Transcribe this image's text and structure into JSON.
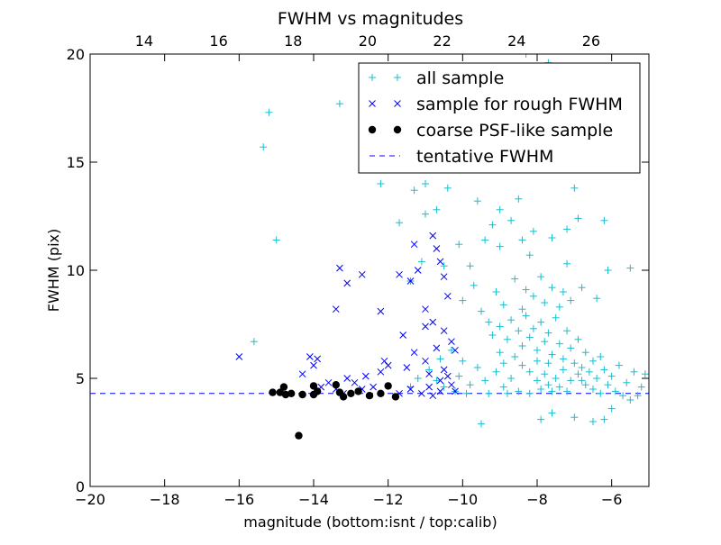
{
  "chart_data": {
    "type": "scatter",
    "title": "FWHM vs magnitudes",
    "xlabel": "magnitude (bottom:isnt / top:calib)",
    "ylabel": "FWHM (pix)",
    "xlim": [
      -20,
      -5
    ],
    "ylim": [
      0,
      20
    ],
    "top_xlim": [
      12.55,
      27.55
    ],
    "x_ticks": [
      -20,
      -18,
      -16,
      -14,
      -12,
      -10,
      -8,
      -6
    ],
    "x_tick_labels": [
      "−20",
      "−18",
      "−16",
      "−14",
      "−12",
      "−10",
      "−8",
      "−6"
    ],
    "top_x_ticks": [
      14,
      16,
      18,
      20,
      22,
      24,
      26
    ],
    "top_x_tick_labels": [
      "14",
      "16",
      "18",
      "20",
      "22",
      "24",
      "26"
    ],
    "y_ticks": [
      0,
      5,
      10,
      15,
      20
    ],
    "y_tick_labels": [
      "0",
      "5",
      "10",
      "15",
      "20"
    ],
    "grid": false,
    "legend_position": "top-right",
    "legend": [
      {
        "label": "all sample",
        "marker": "plus",
        "color": "#17becf"
      },
      {
        "label": "sample for rough FWHM",
        "marker": "x",
        "color": "#0000ff"
      },
      {
        "label": "coarse PSF-like sample",
        "marker": "dot",
        "color": "#000000"
      },
      {
        "label": "tentative FWHM",
        "marker": "dashed-line",
        "color": "#0000ff"
      }
    ],
    "tentative_fwhm": 4.3,
    "series": [
      {
        "name": "all sample",
        "marker": "plus",
        "color": "#17becf",
        "points": [
          [
            -15.2,
            17.3
          ],
          [
            -15.35,
            15.7
          ],
          [
            -15.0,
            11.4
          ],
          [
            -15.6,
            6.7
          ],
          [
            -13.3,
            17.7
          ],
          [
            -12.2,
            14.0
          ],
          [
            -11.6,
            20.2
          ],
          [
            -11.8,
            18.2
          ],
          [
            -10.3,
            18.3
          ],
          [
            -8.3,
            20.0
          ],
          [
            -7.7,
            19.6
          ],
          [
            -7.4,
            18.1
          ],
          [
            -8.4,
            18.4
          ],
          [
            -9.8,
            17.6
          ],
          [
            -10.4,
            13.8
          ],
          [
            -11.0,
            14.0
          ],
          [
            -11.3,
            13.7
          ],
          [
            -9.6,
            13.2
          ],
          [
            -9.0,
            12.8
          ],
          [
            -8.5,
            13.3
          ],
          [
            -7.0,
            13.8
          ],
          [
            -6.2,
            12.3
          ],
          [
            -6.9,
            12.4
          ],
          [
            -11.7,
            12.2
          ],
          [
            -11.0,
            12.6
          ],
          [
            -10.7,
            12.8
          ],
          [
            -9.8,
            10.2
          ],
          [
            -8.2,
            10.7
          ],
          [
            -7.2,
            10.3
          ],
          [
            -6.1,
            10.0
          ],
          [
            -5.5,
            10.1
          ],
          [
            -6.8,
            9.2
          ],
          [
            -6.4,
            8.7
          ],
          [
            -11.4,
            9.5
          ],
          [
            -11.1,
            10.4
          ],
          [
            -10.5,
            10.2
          ],
          [
            -10.1,
            11.2
          ],
          [
            -9.4,
            11.4
          ],
          [
            -9.2,
            12.1
          ],
          [
            -8.7,
            12.3
          ],
          [
            -9.0,
            11.1
          ],
          [
            -8.4,
            11.4
          ],
          [
            -8.1,
            11.8
          ],
          [
            -7.6,
            11.5
          ],
          [
            -7.2,
            11.9
          ],
          [
            -10.0,
            8.6
          ],
          [
            -9.7,
            9.3
          ],
          [
            -9.5,
            8.1
          ],
          [
            -9.1,
            9.0
          ],
          [
            -8.9,
            8.4
          ],
          [
            -8.6,
            9.6
          ],
          [
            -8.4,
            8.2
          ],
          [
            -8.3,
            9.1
          ],
          [
            -8.1,
            8.8
          ],
          [
            -7.9,
            9.7
          ],
          [
            -7.8,
            8.5
          ],
          [
            -7.6,
            9.2
          ],
          [
            -7.4,
            8.3
          ],
          [
            -7.3,
            9.0
          ],
          [
            -7.1,
            8.6
          ],
          [
            -9.3,
            7.6
          ],
          [
            -9.2,
            7.0
          ],
          [
            -9.0,
            7.4
          ],
          [
            -8.8,
            6.8
          ],
          [
            -8.7,
            7.7
          ],
          [
            -8.5,
            7.2
          ],
          [
            -8.4,
            6.5
          ],
          [
            -8.3,
            7.9
          ],
          [
            -8.2,
            6.9
          ],
          [
            -8.1,
            7.3
          ],
          [
            -8.0,
            6.3
          ],
          [
            -7.9,
            7.6
          ],
          [
            -7.8,
            6.7
          ],
          [
            -7.7,
            7.1
          ],
          [
            -7.6,
            6.1
          ],
          [
            -7.5,
            7.8
          ],
          [
            -7.4,
            6.6
          ],
          [
            -7.3,
            5.9
          ],
          [
            -7.2,
            7.2
          ],
          [
            -7.1,
            6.4
          ],
          [
            -7.0,
            5.7
          ],
          [
            -6.9,
            6.8
          ],
          [
            -6.8,
            5.5
          ],
          [
            -6.7,
            6.2
          ],
          [
            -6.6,
            5.3
          ],
          [
            -6.5,
            5.8
          ],
          [
            -6.4,
            5.0
          ],
          [
            -6.3,
            6.0
          ],
          [
            -6.2,
            5.4
          ],
          [
            -6.0,
            5.1
          ],
          [
            -5.8,
            5.6
          ],
          [
            -5.6,
            4.8
          ],
          [
            -5.4,
            5.3
          ],
          [
            -5.2,
            4.6
          ],
          [
            -5.1,
            5.2
          ],
          [
            -8.6,
            6.0
          ],
          [
            -8.4,
            5.6
          ],
          [
            -8.2,
            5.3
          ],
          [
            -8.0,
            5.8
          ],
          [
            -7.8,
            5.2
          ],
          [
            -7.7,
            5.7
          ],
          [
            -7.5,
            5.0
          ],
          [
            -7.3,
            5.4
          ],
          [
            -7.1,
            4.9
          ],
          [
            -6.9,
            5.2
          ],
          [
            -6.7,
            4.7
          ],
          [
            -6.5,
            4.5
          ],
          [
            -6.3,
            4.3
          ],
          [
            -6.1,
            4.7
          ],
          [
            -5.9,
            4.4
          ],
          [
            -5.7,
            4.2
          ],
          [
            -5.5,
            4.0
          ],
          [
            -5.3,
            4.2
          ],
          [
            -6.0,
            3.6
          ],
          [
            -7.0,
            3.2
          ],
          [
            -7.6,
            3.4
          ],
          [
            -7.9,
            3.1
          ],
          [
            -6.5,
            3.0
          ],
          [
            -6.2,
            3.1
          ],
          [
            -9.5,
            2.9
          ],
          [
            -10.0,
            5.8
          ],
          [
            -10.3,
            6.3
          ],
          [
            -10.1,
            5.1
          ],
          [
            -9.8,
            4.7
          ],
          [
            -9.6,
            5.5
          ],
          [
            -9.4,
            4.9
          ],
          [
            -9.1,
            5.3
          ],
          [
            -8.9,
            4.6
          ],
          [
            -8.7,
            5.0
          ],
          [
            -8.5,
            4.4
          ],
          [
            -10.5,
            4.6
          ],
          [
            -10.2,
            4.4
          ],
          [
            -9.9,
            4.3
          ],
          [
            -9.3,
            4.3
          ],
          [
            -8.8,
            4.3
          ],
          [
            -8.2,
            4.3
          ],
          [
            -7.6,
            4.4
          ],
          [
            -7.2,
            4.4
          ],
          [
            -11.2,
            5.0
          ],
          [
            -10.9,
            5.4
          ],
          [
            -10.6,
            5.9
          ],
          [
            -10.7,
            4.9
          ],
          [
            -11.4,
            4.6
          ],
          [
            -9.0,
            6.2
          ],
          [
            -8.9,
            5.7
          ],
          [
            -8.0,
            4.9
          ],
          [
            -7.9,
            4.5
          ],
          [
            -7.7,
            4.7
          ],
          [
            -7.4,
            4.6
          ],
          [
            -6.8,
            4.9
          ]
        ]
      },
      {
        "name": "sample for rough FWHM",
        "marker": "x",
        "color": "#0000ff",
        "points": [
          [
            -16.0,
            6.0
          ],
          [
            -14.3,
            5.2
          ],
          [
            -14.1,
            6.0
          ],
          [
            -13.9,
            5.9
          ],
          [
            -14.0,
            5.6
          ],
          [
            -13.6,
            4.8
          ],
          [
            -13.8,
            4.6
          ],
          [
            -13.4,
            4.5
          ],
          [
            -13.1,
            5.0
          ],
          [
            -12.9,
            4.8
          ],
          [
            -12.6,
            5.1
          ],
          [
            -12.2,
            5.3
          ],
          [
            -12.0,
            5.6
          ],
          [
            -12.1,
            5.8
          ],
          [
            -13.4,
            8.2
          ],
          [
            -13.3,
            10.1
          ],
          [
            -13.1,
            9.4
          ],
          [
            -12.7,
            9.8
          ],
          [
            -12.2,
            8.1
          ],
          [
            -11.7,
            9.8
          ],
          [
            -11.4,
            9.5
          ],
          [
            -11.3,
            11.2
          ],
          [
            -11.2,
            10.0
          ],
          [
            -11.0,
            8.2
          ],
          [
            -10.8,
            11.6
          ],
          [
            -10.7,
            11.0
          ],
          [
            -10.6,
            10.4
          ],
          [
            -10.5,
            9.7
          ],
          [
            -10.4,
            8.8
          ],
          [
            -10.8,
            7.6
          ],
          [
            -10.5,
            7.2
          ],
          [
            -10.3,
            6.7
          ],
          [
            -10.7,
            6.4
          ],
          [
            -11.0,
            5.8
          ],
          [
            -11.3,
            6.2
          ],
          [
            -11.6,
            7.0
          ],
          [
            -11.5,
            5.5
          ],
          [
            -10.9,
            5.2
          ],
          [
            -10.6,
            4.9
          ],
          [
            -10.4,
            5.1
          ],
          [
            -10.3,
            4.7
          ],
          [
            -10.2,
            4.4
          ],
          [
            -10.6,
            4.4
          ],
          [
            -10.9,
            4.6
          ],
          [
            -11.1,
            4.3
          ],
          [
            -11.4,
            4.5
          ],
          [
            -11.7,
            4.3
          ],
          [
            -10.8,
            4.2
          ],
          [
            -12.4,
            4.6
          ],
          [
            -12.7,
            4.5
          ],
          [
            -13.2,
            4.3
          ],
          [
            -10.5,
            5.4
          ],
          [
            -11.0,
            7.4
          ],
          [
            -10.2,
            6.3
          ]
        ]
      },
      {
        "name": "coarse PSF-like sample",
        "marker": "dot",
        "color": "#000000",
        "points": [
          [
            -15.1,
            4.35
          ],
          [
            -14.9,
            4.35
          ],
          [
            -14.8,
            4.6
          ],
          [
            -14.75,
            4.25
          ],
          [
            -14.6,
            4.3
          ],
          [
            -14.3,
            4.25
          ],
          [
            -14.0,
            4.65
          ],
          [
            -14.0,
            4.25
          ],
          [
            -13.9,
            4.4
          ],
          [
            -14.4,
            2.35
          ],
          [
            -13.4,
            4.7
          ],
          [
            -13.3,
            4.35
          ],
          [
            -13.2,
            4.15
          ],
          [
            -13.0,
            4.3
          ],
          [
            -12.8,
            4.4
          ],
          [
            -12.5,
            4.2
          ],
          [
            -12.2,
            4.3
          ],
          [
            -12.0,
            4.65
          ],
          [
            -11.8,
            4.15
          ]
        ]
      }
    ]
  }
}
